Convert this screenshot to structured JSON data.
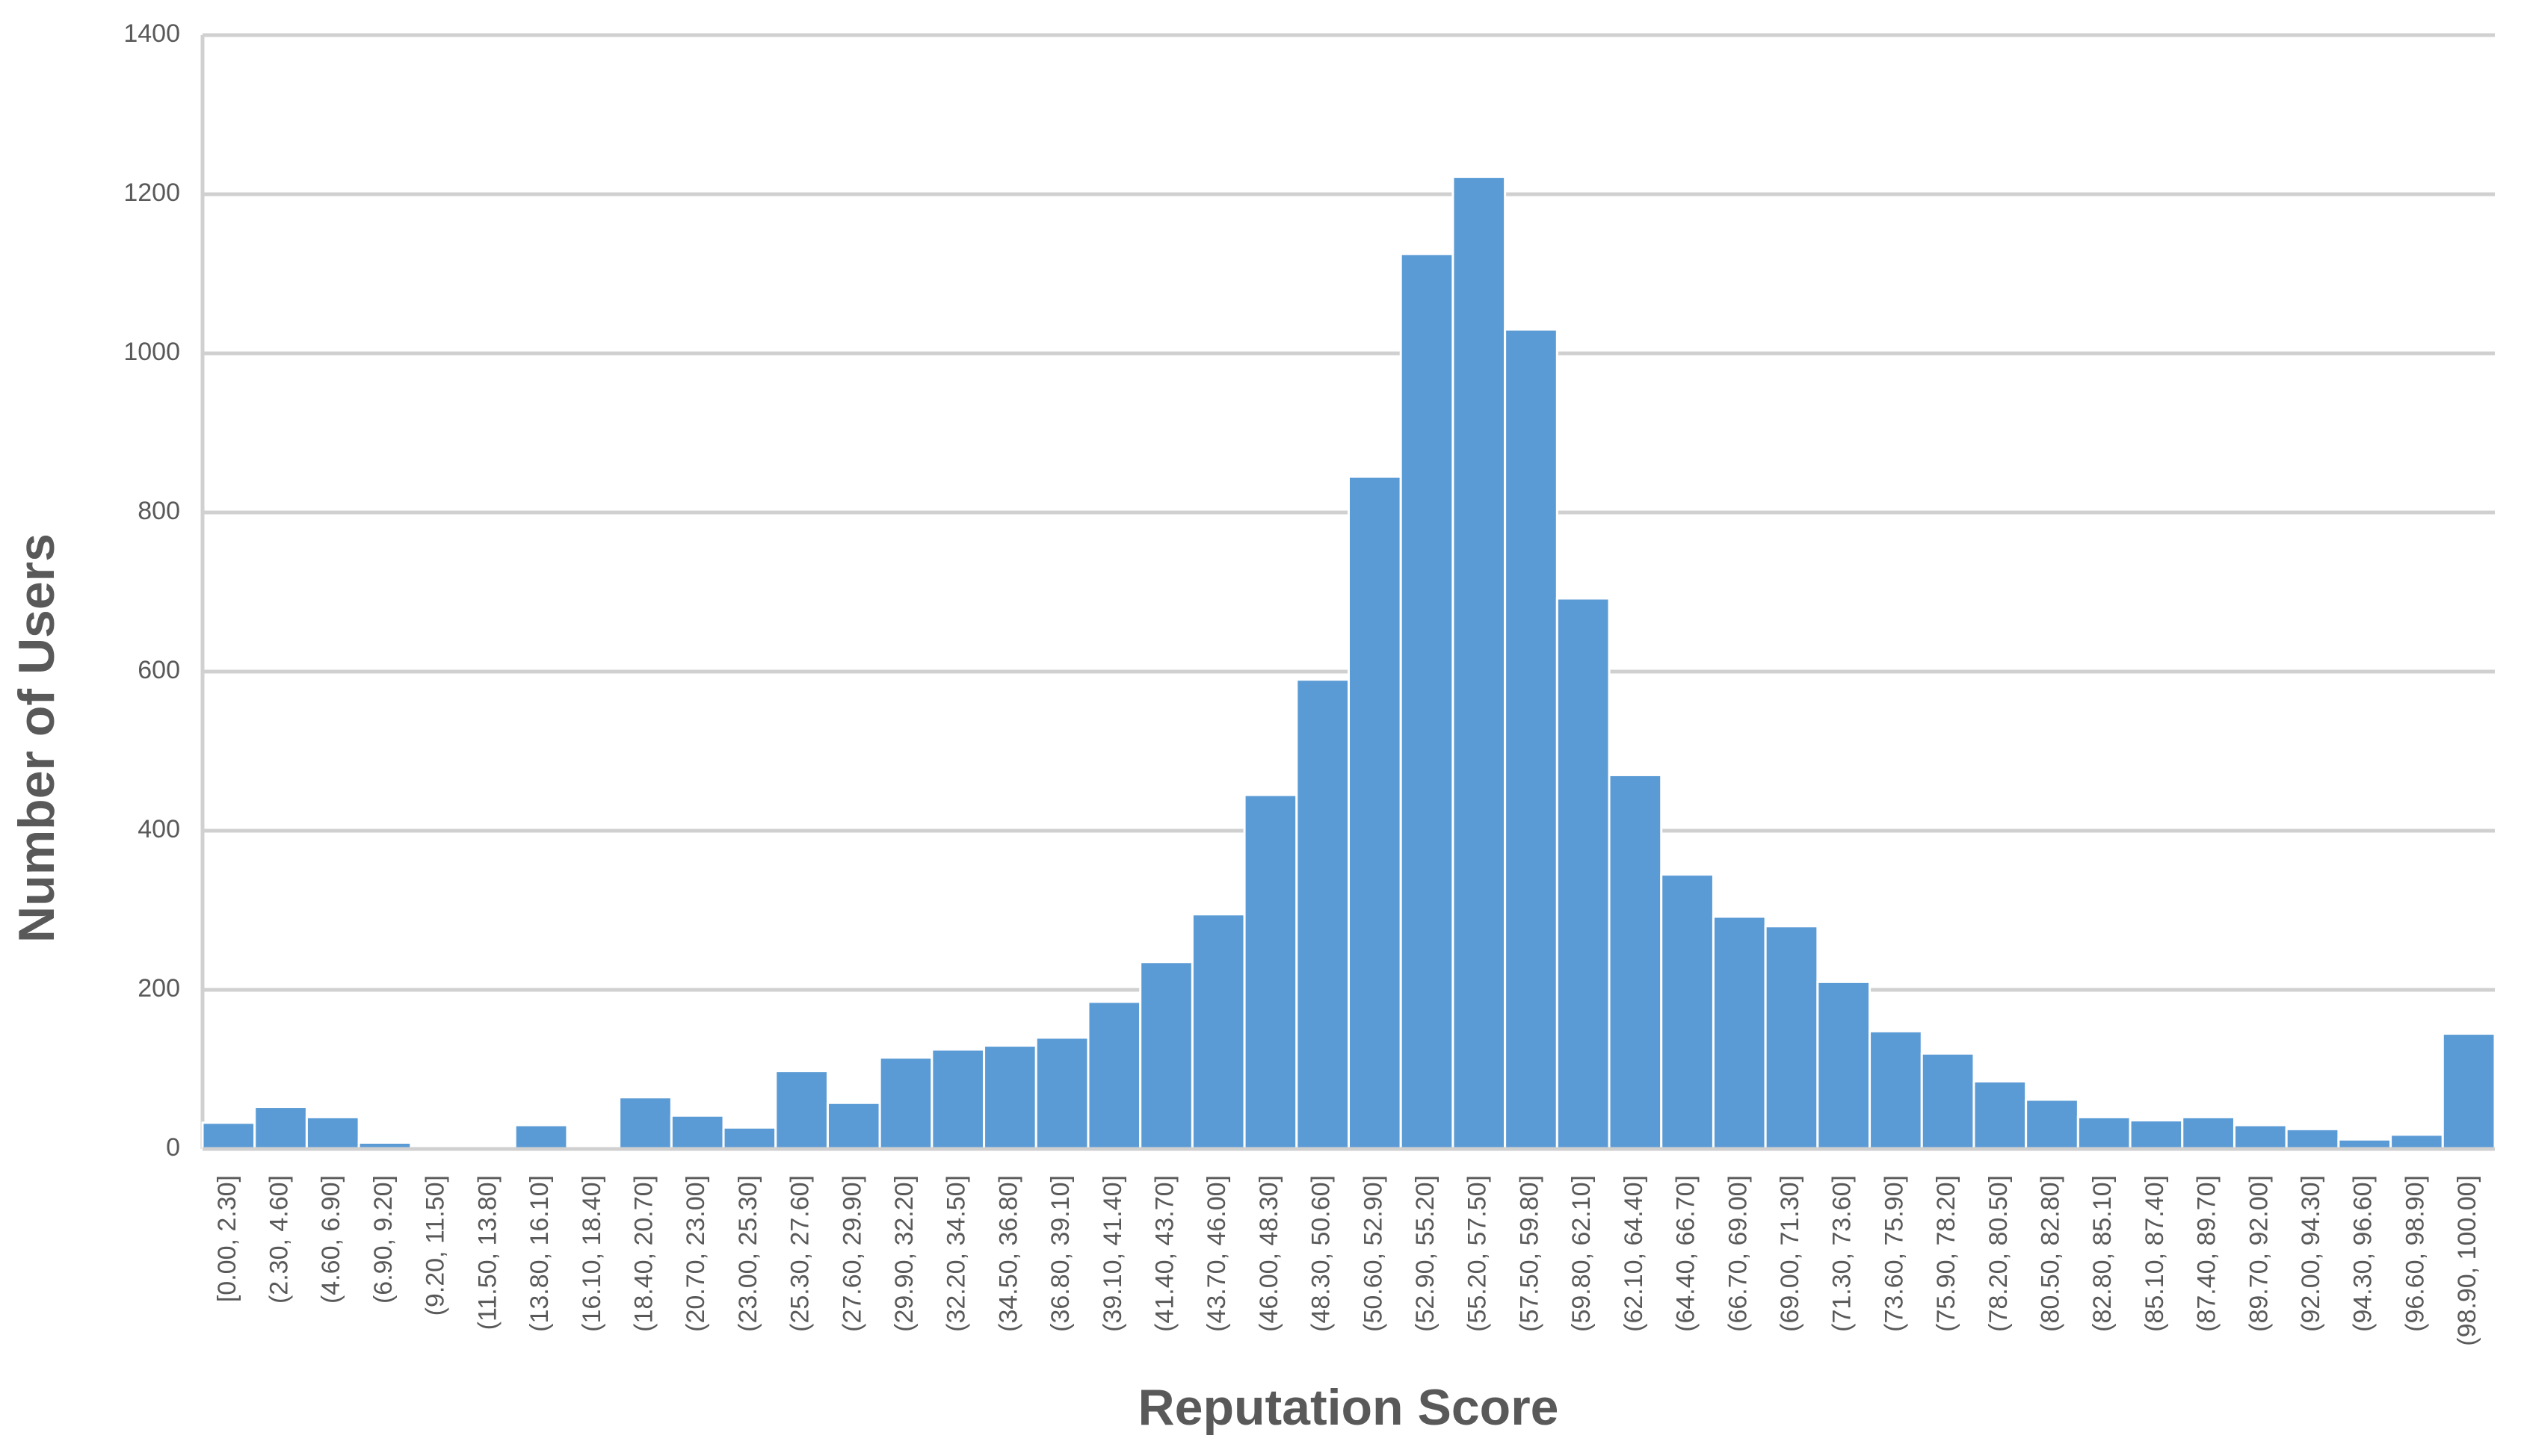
{
  "chart_data": {
    "type": "bar",
    "x_label": "Reputation Score",
    "y_label": "Number of Users",
    "categories": [
      "[0.00, 2.30]",
      "(2.30, 4.60]",
      "(4.60, 6.90]",
      "(6.90, 9.20]",
      "(9.20, 11.50]",
      "(11.50, 13.80]",
      "(13.80, 16.10]",
      "(16.10, 18.40]",
      "(18.40, 20.70]",
      "(20.70, 23.00]",
      "(23.00, 25.30]",
      "(25.30, 27.60]",
      "(27.60, 29.90]",
      "(29.90, 32.20]",
      "(32.20, 34.50]",
      "(34.50, 36.80]",
      "(36.80, 39.10]",
      "(39.10, 41.40]",
      "(41.40, 43.70]",
      "(43.70, 46.00]",
      "(46.00, 48.30]",
      "(48.30, 50.60]",
      "(50.60, 52.90]",
      "(52.90, 55.20]",
      "(55.20, 57.50]",
      "(57.50, 59.80]",
      "(59.80, 62.10]",
      "(62.10, 64.40]",
      "(64.40, 66.70]",
      "(66.70, 69.00]",
      "(69.00, 71.30]",
      "(71.30, 73.60]",
      "(73.60, 75.90]",
      "(75.90, 78.20]",
      "(78.20, 80.50]",
      "(80.50, 82.80]",
      "(82.80, 85.10]",
      "(85.10, 87.40]",
      "(87.40, 89.70]",
      "(89.70, 92.00]",
      "(92.00, 94.30]",
      "(94.30, 96.60]",
      "(96.60, 98.90]",
      "(98.90, 100.00]"
    ],
    "values": [
      33,
      53,
      40,
      8,
      0,
      0,
      30,
      0,
      65,
      42,
      27,
      98,
      58,
      115,
      125,
      130,
      140,
      185,
      235,
      295,
      445,
      590,
      845,
      1125,
      1222,
      1030,
      692,
      470,
      345,
      292,
      280,
      210,
      148,
      120,
      85,
      62,
      40,
      36,
      40,
      30,
      25,
      12,
      18,
      145
    ],
    "color": "#5b9bd5",
    "ylim": [
      0,
      1400
    ],
    "yticks": [
      0,
      200,
      400,
      600,
      800,
      1000,
      1200,
      1400
    ],
    "grid": true
  }
}
